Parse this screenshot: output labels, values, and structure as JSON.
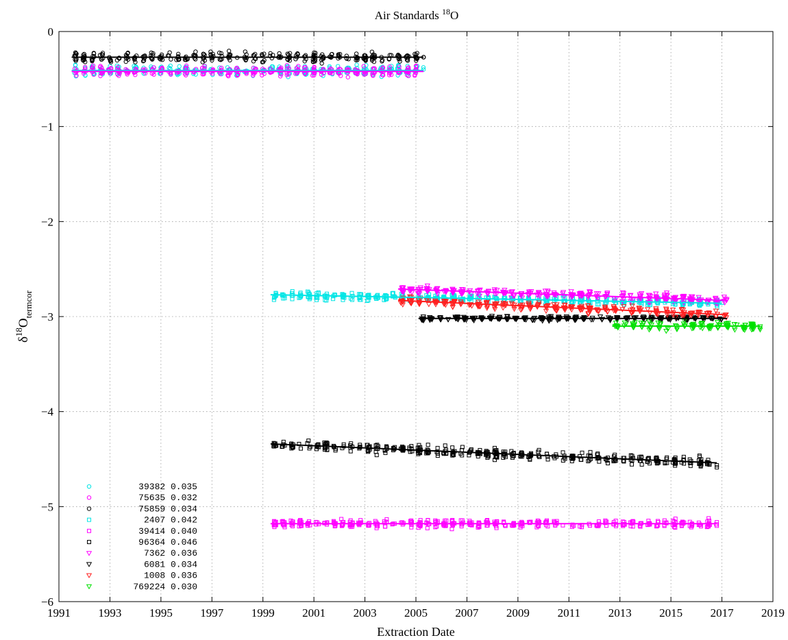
{
  "chart_data": {
    "type": "scatter",
    "title_main": "Air Standards ",
    "title_sup": "18",
    "title_tail": "O",
    "xlabel": "Extraction Date",
    "ylabel_delta": "δ",
    "ylabel_sup": "18",
    "ylabel_o": "O",
    "ylabel_sub": "termcor",
    "xlim": [
      1991,
      2019
    ],
    "ylim": [
      -6,
      0
    ],
    "xticks": [
      1991,
      1993,
      1995,
      1997,
      1999,
      2001,
      2003,
      2005,
      2007,
      2009,
      2011,
      2013,
      2015,
      2017,
      2019
    ],
    "xtick_labels": [
      "1991",
      "1993",
      "1995",
      "1997",
      "1999",
      "2001",
      "2003",
      "2005",
      "2007",
      "2009",
      "2011",
      "2013",
      "2015",
      "2017",
      "2019"
    ],
    "yticks": [
      0,
      -1,
      -2,
      -3,
      -4,
      -5,
      -6
    ],
    "ytick_labels": [
      "0",
      "−1",
      "−2",
      "−3",
      "−4",
      "−5",
      "−6"
    ],
    "grid": true,
    "legend_position": "bottom-left",
    "series": [
      {
        "name": "39382",
        "sd": "0.035",
        "marker": "circle",
        "color": "#00e5e5",
        "x_start": 1991.5,
        "x_end": 2005.3,
        "mean": -0.4,
        "trend": [
          -0.41,
          -0.41
        ],
        "spread": 0.05
      },
      {
        "name": "75635",
        "sd": "0.032",
        "marker": "circle",
        "color": "#ff00ff",
        "x_start": 1991.5,
        "x_end": 2005.3,
        "mean": -0.43,
        "trend": [
          -0.42,
          -0.42
        ],
        "spread": 0.05
      },
      {
        "name": "75859",
        "sd": "0.034",
        "marker": "circle",
        "color": "#000000",
        "x_start": 1991.5,
        "x_end": 2005.3,
        "mean": -0.25,
        "trend": [
          -0.27,
          -0.27
        ],
        "spread": 0.05
      },
      {
        "name": "2407",
        "sd": "0.042",
        "marker": "square",
        "color": "#00e5e5",
        "x_start": 1999.3,
        "x_end": 2017.0,
        "mean": -2.8,
        "trend": [
          -2.77,
          -2.86
        ],
        "spread": 0.04
      },
      {
        "name": "39414",
        "sd": "0.040",
        "marker": "square",
        "color": "#ff00ff",
        "x_start": 1999.3,
        "x_end": 2016.8,
        "mean": -5.19,
        "trend": [
          -5.18,
          -5.18
        ],
        "spread": 0.04
      },
      {
        "name": "96364",
        "sd": "0.046",
        "marker": "square",
        "color": "#000000",
        "x_start": 1999.3,
        "x_end": 2016.8,
        "mean": -4.4,
        "trend": [
          -4.34,
          -4.54
        ],
        "spread": 0.05
      },
      {
        "name": "7362",
        "sd": "0.036",
        "marker": "triangle-down",
        "color": "#ff00ff",
        "x_start": 2004.3,
        "x_end": 2017.2,
        "mean": -2.75,
        "trend": [
          -2.71,
          -2.83
        ],
        "spread": 0.04
      },
      {
        "name": "6081",
        "sd": "0.034",
        "marker": "triangle-down",
        "color": "#000000",
        "x_start": 2005.1,
        "x_end": 2017.2,
        "mean": -3.02,
        "trend": [
          -3.02,
          -3.02
        ],
        "spread": 0.02
      },
      {
        "name": "1008",
        "sd": "0.036",
        "marker": "triangle-down",
        "color": "#ff2020",
        "x_start": 2004.3,
        "x_end": 2017.2,
        "mean": -2.9,
        "trend": [
          -2.83,
          -2.98
        ],
        "spread": 0.04
      },
      {
        "name": "769224",
        "sd": "0.030",
        "marker": "triangle-down",
        "color": "#00e000",
        "x_start": 2012.7,
        "x_end": 2018.5,
        "mean": -3.1,
        "trend": [
          -3.1,
          -3.1
        ],
        "spread": 0.04
      }
    ]
  }
}
